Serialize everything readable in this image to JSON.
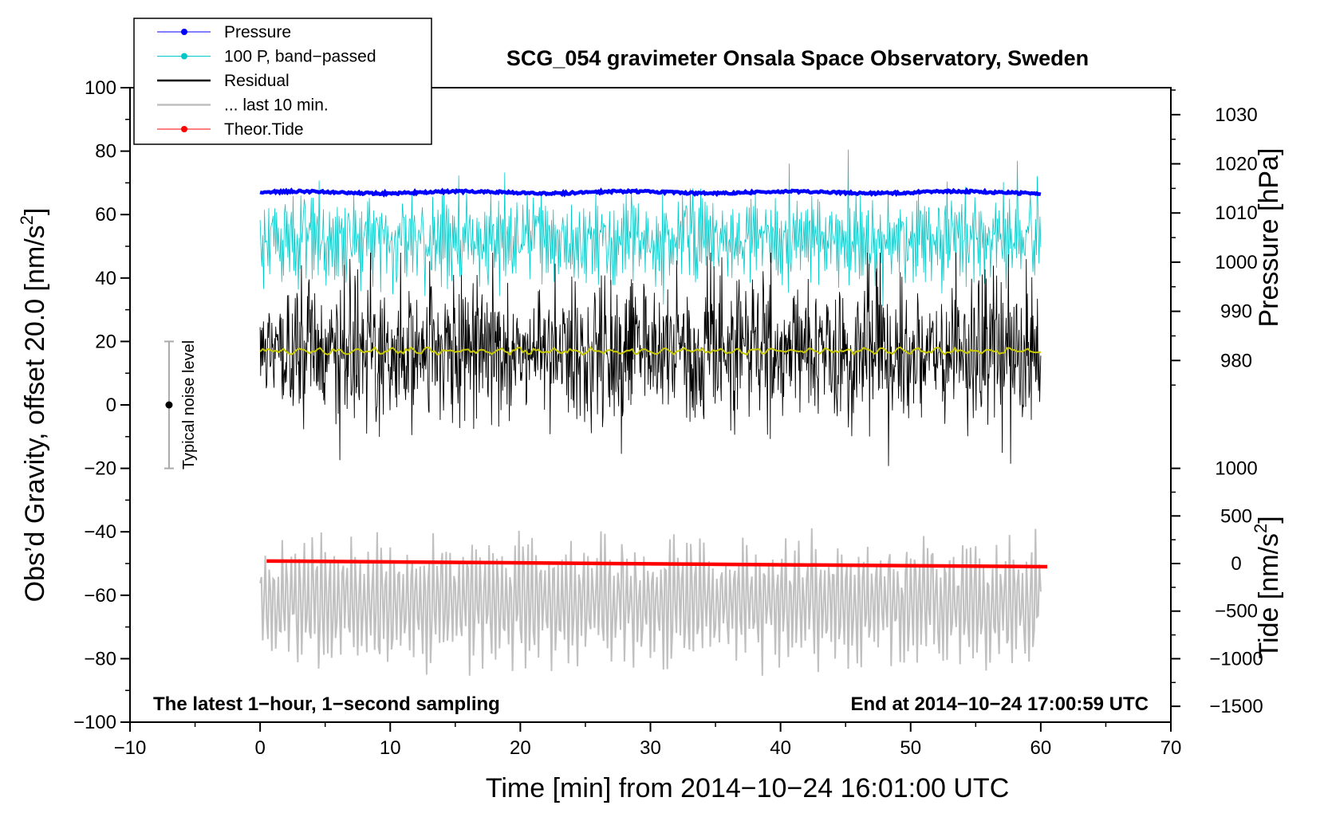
{
  "chart_data": {
    "type": "line",
    "title": "SCG_054 gravimeter Onsala Space Observatory, Sweden",
    "xlabel": "Time [min] from 2014−10−24 16:01:00 UTC",
    "ylabel_left": "Obs’d Gravity, offset 20.0 [nm/s",
    "ylabel_left_sup": "2",
    "ylabel_left_end": "]",
    "ylabel_right_pressure": "Pressure [hPa]",
    "ylabel_right_tide": "Tide [nm/s",
    "ylabel_right_tide_sup": "2",
    "ylabel_right_tide_end": "]",
    "xlim": [
      -10,
      70
    ],
    "ylim_left": [
      -100,
      100
    ],
    "pressure_axis": {
      "ref_value": 1000,
      "ref_left": 45,
      "units_per_left": 0.6452,
      "ticks": [
        980,
        990,
        1000,
        1010,
        1020,
        1030
      ],
      "tick_labels": [
        "980",
        "990",
        "1000",
        "1010",
        "1020",
        "1030"
      ]
    },
    "tide_axis": {
      "ref_value": 0,
      "ref_left": -50,
      "units_per_left": 33.33,
      "ticks": [
        -1500,
        -1000,
        -500,
        0,
        500,
        1000
      ],
      "tick_labels": [
        "−1500",
        "−1000",
        "−500",
        "0",
        "500",
        "1000"
      ]
    },
    "x_ticks": [
      -10,
      0,
      10,
      20,
      30,
      40,
      50,
      60,
      70
    ],
    "x_tick_labels": [
      "−10",
      "0",
      "10",
      "20",
      "30",
      "40",
      "50",
      "60",
      "70"
    ],
    "y_ticks": [
      -100,
      -80,
      -60,
      -40,
      -20,
      0,
      20,
      40,
      60,
      80,
      100
    ],
    "y_tick_labels": [
      "−100",
      "−80",
      "−60",
      "−40",
      "−20",
      "0",
      "20",
      "40",
      "60",
      "80",
      "100"
    ],
    "series": [
      {
        "name": "Pressure",
        "color": "#0000ff",
        "x_range": [
          0,
          60
        ],
        "approx_value_hPa": 1013.5,
        "plotted_level": 67,
        "style": "line-dot"
      },
      {
        "name": "100 P, band−passed",
        "color": "#00c8c8",
        "x_range": [
          0,
          60
        ],
        "center": 52,
        "amplitude": 18,
        "style": "line-dot"
      },
      {
        "name": "Residual",
        "color": "#000000",
        "x_range": [
          0,
          60
        ],
        "center": 17,
        "amplitude": 35,
        "style": "line"
      },
      {
        "name": "... last 10 min.",
        "color": "#c0c0c0",
        "x_range": [
          0,
          60
        ],
        "center": -62,
        "amplitude": 26,
        "style": "line"
      },
      {
        "name": "Theor.Tide",
        "color": "#ff0000",
        "x_range": [
          0.5,
          60.5
        ],
        "start_level": -49.2,
        "end_level": -51,
        "style": "line-dot"
      }
    ],
    "smoothed_residual": {
      "color": "#c8c800",
      "level": 17
    },
    "noise_bar": {
      "x": -7,
      "center": 0,
      "half_width": 20,
      "label": "Typical noise level"
    },
    "annotations": {
      "bottom_left": "The latest 1−hour, 1−second sampling",
      "bottom_right": "End at 2014−10−24 17:00:59 UTC"
    },
    "legend_position": "top-left"
  }
}
